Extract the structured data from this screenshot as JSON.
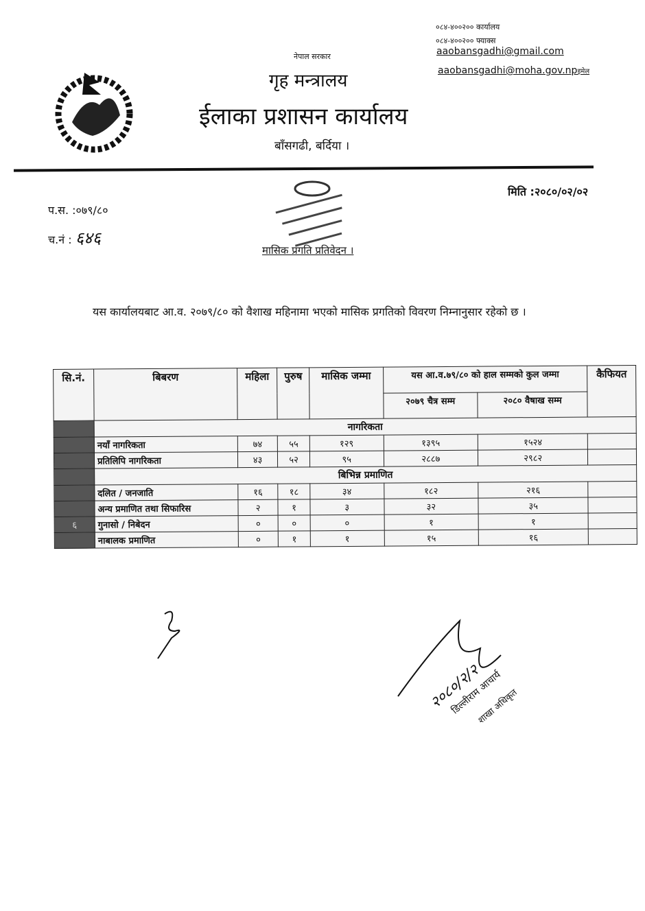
{
  "header": {
    "phone_office": "०८४-४००२०० कार्यालय",
    "phone_fax": "०८४-४००२०० फ्याक्स",
    "email1": "aaobansgadhi@gmail.com",
    "email2": "aaobansgadhi@moha.gov.np",
    "email_label": "इमेल",
    "government": "नेपाल सरकार",
    "ministry": "गृह मन्त्रालय",
    "office": "ईलाका प्रशासन कार्यालय",
    "location": "बाँसगढी, बर्दिया ।"
  },
  "meta": {
    "date": "मिति :२०८०/०२/०२",
    "ps": "प.स. :०७९/८०",
    "cn_label": "च.नं :",
    "cn_value": "६४६"
  },
  "stamp": {
    "text": "नेपाल सरकार गृह मन्त्रालय ईलाका प्रशासन कार्यालय बाँसगढी, बर्दिया"
  },
  "subject": "मासिक प्रगति प्रतिवेदन ।",
  "body_text": "यस कार्यालयबाट आ.व. २०७९/८० को वैशाख महिनामा भएको मासिक प्रगतिको विवरण निम्नानुसार रहेको छ ।",
  "table": {
    "headers": {
      "sn": "सि.नं.",
      "desc": "बिबरण",
      "female": "महिला",
      "male": "पुरुष",
      "monthly": "मासिक जम्मा",
      "cumulative": "यस आ.व.७९/८० को हाल सम्मको कुल जम्मा",
      "chaitra": "२०७९ चैत्र सम्म",
      "baishakh": "२०८० वैषाख सम्म",
      "remarks": "कैफियत"
    },
    "sections": [
      {
        "title": "नागरिकता",
        "rows": [
          {
            "sn": "",
            "label": "नयाँ नागरिकता",
            "female": "७४",
            "male": "५५",
            "monthly": "१२९",
            "chaitra": "१३९५",
            "baishakh": "१५२४"
          },
          {
            "sn": "",
            "label": "प्रतिलिपि नागरिकता",
            "female": "४३",
            "male": "५२",
            "monthly": "९५",
            "chaitra": "२८८७",
            "baishakh": "२९८२"
          }
        ]
      },
      {
        "title": "बिभिन्न प्रमाणित",
        "rows": [
          {
            "sn": "",
            "label": "दलित / जनजाति",
            "female": "१६",
            "male": "१८",
            "monthly": "३४",
            "chaitra": "१८२",
            "baishakh": "२१६"
          },
          {
            "sn": "",
            "label": "अन्य प्रमाणित तथा सिफारिस",
            "female": "२",
            "male": "१",
            "monthly": "३",
            "chaitra": "३२",
            "baishakh": "३५"
          },
          {
            "sn": "६",
            "label": "गुनासो / निबेदन",
            "female": "०",
            "male": "०",
            "monthly": "०",
            "chaitra": "१",
            "baishakh": "१"
          },
          {
            "sn": "",
            "label": "नाबालक प्रमाणित",
            "female": "०",
            "male": "१",
            "monthly": "१",
            "chaitra": "१५",
            "baishakh": "१६"
          }
        ]
      }
    ]
  },
  "signature": {
    "date": "२०८०/२/२",
    "name": "डिल्लीराम आचार्य",
    "title": "शाखा अधिकृत"
  }
}
